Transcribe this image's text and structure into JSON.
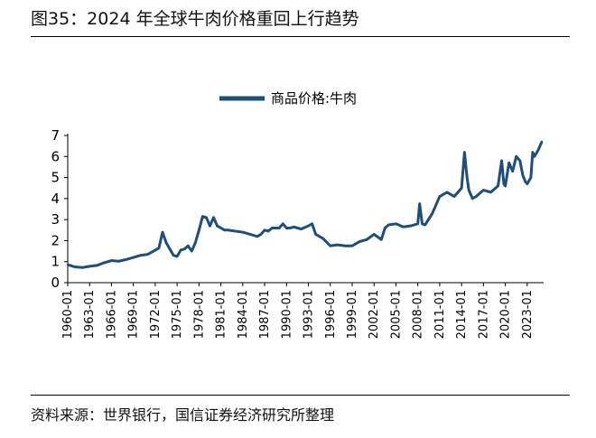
{
  "figure": {
    "title": "图35：2024 年全球牛肉价格重回上行趋势",
    "source": "资料来源：世界银行，国信证券经济研究所整理"
  },
  "colors": {
    "series": "#1F4E79",
    "axis": "#000000",
    "rule": "#000000"
  },
  "chart_data": {
    "type": "line",
    "title": "",
    "xlabel": "",
    "ylabel": "",
    "ylim": [
      0,
      7
    ],
    "yticks": [
      0,
      1,
      2,
      3,
      4,
      5,
      6,
      7
    ],
    "xlim": [
      1960.0,
      2025.25
    ],
    "xticks": [
      "1960-01",
      "1963-01",
      "1966-01",
      "1969-01",
      "1972-01",
      "1975-01",
      "1978-01",
      "1981-01",
      "1984-01",
      "1987-01",
      "1990-01",
      "1993-01",
      "1996-01",
      "1999-01",
      "2002-01",
      "2005-01",
      "2008-01",
      "2011-01",
      "2014-01",
      "2017-01",
      "2020-01",
      "2023-01"
    ],
    "grid": false,
    "legend": "top-center",
    "series": [
      {
        "name": "商品价格:牛肉",
        "color": "#1F4E79",
        "x": [
          1960.0,
          1961.0,
          1962.0,
          1963.0,
          1964.0,
          1965.0,
          1966.0,
          1967.0,
          1968.0,
          1969.0,
          1970.0,
          1971.0,
          1972.0,
          1972.5,
          1973.0,
          1973.5,
          1974.0,
          1974.5,
          1975.0,
          1975.5,
          1976.0,
          1976.5,
          1977.0,
          1977.5,
          1978.0,
          1978.5,
          1979.0,
          1979.5,
          1980.0,
          1980.5,
          1981.0,
          1981.5,
          1982.0,
          1983.0,
          1984.0,
          1985.0,
          1986.0,
          1986.5,
          1987.0,
          1987.5,
          1988.0,
          1989.0,
          1989.5,
          1990.0,
          1990.5,
          1991.0,
          1992.0,
          1993.0,
          1993.5,
          1994.0,
          1995.0,
          1996.0,
          1997.0,
          1998.0,
          1999.0,
          2000.0,
          2001.0,
          2002.0,
          2003.0,
          2003.5,
          2004.0,
          2005.0,
          2006.0,
          2007.0,
          2008.0,
          2008.25,
          2008.6,
          2009.0,
          2010.0,
          2011.0,
          2012.0,
          2013.0,
          2014.0,
          2014.4,
          2014.75,
          2015.0,
          2015.5,
          2016.0,
          2017.0,
          2018.0,
          2019.0,
          2019.5,
          2019.8,
          2020.0,
          2020.5,
          2021.0,
          2021.5,
          2022.0,
          2022.4,
          2022.75,
          2023.0,
          2023.5,
          2023.75,
          2024.0,
          2024.5,
          2025.0
        ],
        "values": [
          0.85,
          0.75,
          0.72,
          0.78,
          0.82,
          0.95,
          1.05,
          1.02,
          1.1,
          1.2,
          1.3,
          1.35,
          1.55,
          1.65,
          2.4,
          1.9,
          1.6,
          1.3,
          1.25,
          1.55,
          1.6,
          1.75,
          1.5,
          1.9,
          2.5,
          3.15,
          3.1,
          2.7,
          3.1,
          2.7,
          2.6,
          2.5,
          2.5,
          2.45,
          2.4,
          2.3,
          2.2,
          2.3,
          2.5,
          2.45,
          2.6,
          2.6,
          2.8,
          2.6,
          2.6,
          2.65,
          2.55,
          2.7,
          2.8,
          2.3,
          2.1,
          1.75,
          1.8,
          1.75,
          1.75,
          1.95,
          2.05,
          2.3,
          2.05,
          2.6,
          2.75,
          2.8,
          2.65,
          2.7,
          2.8,
          3.75,
          2.8,
          2.75,
          3.3,
          4.1,
          4.3,
          4.1,
          4.5,
          6.2,
          5.0,
          4.4,
          4.0,
          4.1,
          4.4,
          4.3,
          4.6,
          5.8,
          4.7,
          4.6,
          5.7,
          5.3,
          6.0,
          5.8,
          5.1,
          4.8,
          4.7,
          5.0,
          6.2,
          6.0,
          6.3,
          6.7
        ]
      }
    ]
  }
}
